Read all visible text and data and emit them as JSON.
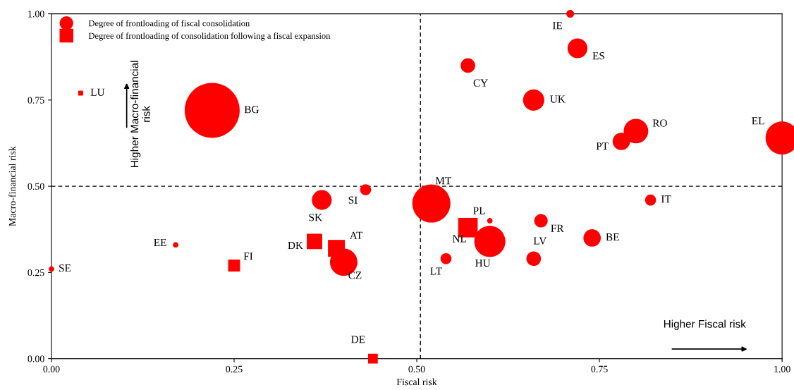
{
  "chart_data": {
    "type": "bubble",
    "xlabel": "Fiscal risk",
    "ylabel": "Macro-financial risk",
    "xlim": [
      0,
      1
    ],
    "ylim": [
      0,
      1
    ],
    "xticks": [
      {
        "value": 0,
        "label": "0.00"
      },
      {
        "value": 0.25,
        "label": "0.25"
      },
      {
        "value": 0.5,
        "label": "0.50"
      },
      {
        "value": 0.75,
        "label": "0.75"
      },
      {
        "value": 1,
        "label": "1.00"
      }
    ],
    "yticks": [
      {
        "value": 0,
        "label": "0.00"
      },
      {
        "value": 0.25,
        "label": "0.25"
      },
      {
        "value": 0.5,
        "label": "0.50"
      },
      {
        "value": 0.75,
        "label": "0.75"
      },
      {
        "value": 1,
        "label": "1.00"
      }
    ],
    "grid": false,
    "legend": "top left",
    "series": [
      {
        "name": "Degree of frontloading of fiscal consolidation",
        "color": "#ff0000",
        "marker": "circle",
        "x": [
          0.71,
          0.72,
          0.57,
          0.66,
          0.8,
          0.78,
          1.0,
          0.22,
          0.52,
          0.43,
          0.37,
          0.82,
          0.6,
          0.67,
          0.6,
          0.74,
          0.66,
          0.54,
          0.17,
          0.0,
          0.4
        ],
        "values": [
          1.0,
          0.9,
          0.85,
          0.75,
          0.66,
          0.63,
          0.64,
          0.72,
          0.45,
          0.49,
          0.46,
          0.46,
          0.4,
          0.4,
          0.34,
          0.35,
          0.29,
          0.29,
          0.33,
          0.26,
          0.28
        ],
        "sizes": [
          0.02,
          0.13,
          0.07,
          0.15,
          0.2,
          0.1,
          0.36,
          1,
          0.48,
          0.04,
          0.13,
          0.04,
          0.01,
          0.06,
          0.32,
          0.1,
          0.07,
          0.04,
          0.01,
          0.01,
          0.25
        ]
      },
      {
        "name": "Degree of frontloading of consolidation following a fiscal expansion",
        "color": "#ff0000",
        "marker": "square",
        "x": [
          0.04,
          0.57,
          0.25,
          0.36,
          0.39,
          0.44
        ],
        "values": [
          0.77,
          0.38,
          0.27,
          0.34,
          0.32,
          0.0
        ],
        "sizes": [
          0.01,
          0.16,
          0.06,
          0.1,
          0.12,
          0.04
        ]
      }
    ],
    "ref_lines": [
      {
        "axis": "x",
        "value": 0.505,
        "line_style": "dashed",
        "color": "#000000"
      },
      {
        "axis": "y",
        "value": 0.5,
        "line_style": "dashed",
        "color": "#000000"
      }
    ],
    "annotations": [
      {
        "text": "IE",
        "x": 0.71,
        "y": 1.0
      },
      {
        "text": "ES",
        "x": 0.72,
        "y": 0.9
      },
      {
        "text": "CY",
        "x": 0.57,
        "y": 0.85
      },
      {
        "text": "UK",
        "x": 0.66,
        "y": 0.75
      },
      {
        "text": "RO",
        "x": 0.8,
        "y": 0.66
      },
      {
        "text": "PT",
        "x": 0.78,
        "y": 0.63
      },
      {
        "text": "EL",
        "x": 1.0,
        "y": 0.64
      },
      {
        "text": "BG",
        "x": 0.22,
        "y": 0.72
      },
      {
        "text": "MT",
        "x": 0.52,
        "y": 0.45
      },
      {
        "text": "SI",
        "x": 0.43,
        "y": 0.49
      },
      {
        "text": "SK",
        "x": 0.37,
        "y": 0.46
      },
      {
        "text": "IT",
        "x": 0.82,
        "y": 0.46
      },
      {
        "text": "PL",
        "x": 0.6,
        "y": 0.4
      },
      {
        "text": "FR",
        "x": 0.67,
        "y": 0.4
      },
      {
        "text": "HU",
        "x": 0.6,
        "y": 0.34
      },
      {
        "text": "BE",
        "x": 0.74,
        "y": 0.35
      },
      {
        "text": "LV",
        "x": 0.66,
        "y": 0.29
      },
      {
        "text": "LT",
        "x": 0.54,
        "y": 0.29
      },
      {
        "text": "EE",
        "x": 0.17,
        "y": 0.33
      },
      {
        "text": "SE",
        "x": 0.0,
        "y": 0.26
      },
      {
        "text": "CZ",
        "x": 0.4,
        "y": 0.28
      },
      {
        "text": "LU",
        "x": 0.04,
        "y": 0.77
      },
      {
        "text": "NL",
        "x": 0.57,
        "y": 0.38
      },
      {
        "text": "FI",
        "x": 0.25,
        "y": 0.27
      },
      {
        "text": "DK",
        "x": 0.36,
        "y": 0.34
      },
      {
        "text": "AT",
        "x": 0.39,
        "y": 0.32
      },
      {
        "text": "DE",
        "x": 0.44,
        "y": 0.0
      },
      "Higher Macro-financial\nrisk",
      "Higher Fiscal risk"
    ]
  }
}
